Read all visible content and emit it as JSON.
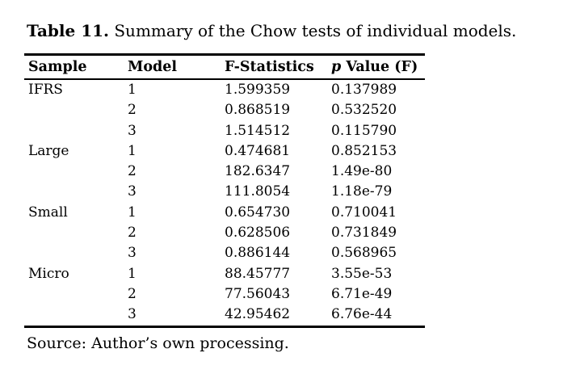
{
  "caption": {
    "label": "Table 11.",
    "text": " Summary of the Chow tests of individual models."
  },
  "table": {
    "columns": {
      "sample": "Sample",
      "model": "Model",
      "f_statistics": "F-Statistics",
      "p_value_italic": "p",
      "p_value_rest": " Value (F)"
    },
    "rows": [
      {
        "sample": "IFRS",
        "model": "1",
        "f": "1.599359",
        "p": "0.137989"
      },
      {
        "sample": "",
        "model": "2",
        "f": "0.868519",
        "p": "0.532520"
      },
      {
        "sample": "",
        "model": "3",
        "f": "1.514512",
        "p": "0.115790"
      },
      {
        "sample": "Large",
        "model": "1",
        "f": "0.474681",
        "p": "0.852153"
      },
      {
        "sample": "",
        "model": "2",
        "f": "182.6347",
        "p": "1.49e-80"
      },
      {
        "sample": "",
        "model": "3",
        "f": "111.8054",
        "p": "1.18e-79"
      },
      {
        "sample": "Small",
        "model": "1",
        "f": "0.654730",
        "p": "0.710041"
      },
      {
        "sample": "",
        "model": "2",
        "f": "0.628506",
        "p": "0.731849"
      },
      {
        "sample": "",
        "model": "3",
        "f": "0.886144",
        "p": "0.568965"
      },
      {
        "sample": "Micro",
        "model": "1",
        "f": "88.45777",
        "p": "3.55e-53"
      },
      {
        "sample": "",
        "model": "2",
        "f": "77.56043",
        "p": "6.71e-49"
      },
      {
        "sample": "",
        "model": "3",
        "f": "42.95462",
        "p": "6.76e-44"
      }
    ]
  },
  "source": "Source: Author’s own processing.",
  "colors": {
    "text": "#000000",
    "background": "#ffffff",
    "rule": "#000000"
  }
}
